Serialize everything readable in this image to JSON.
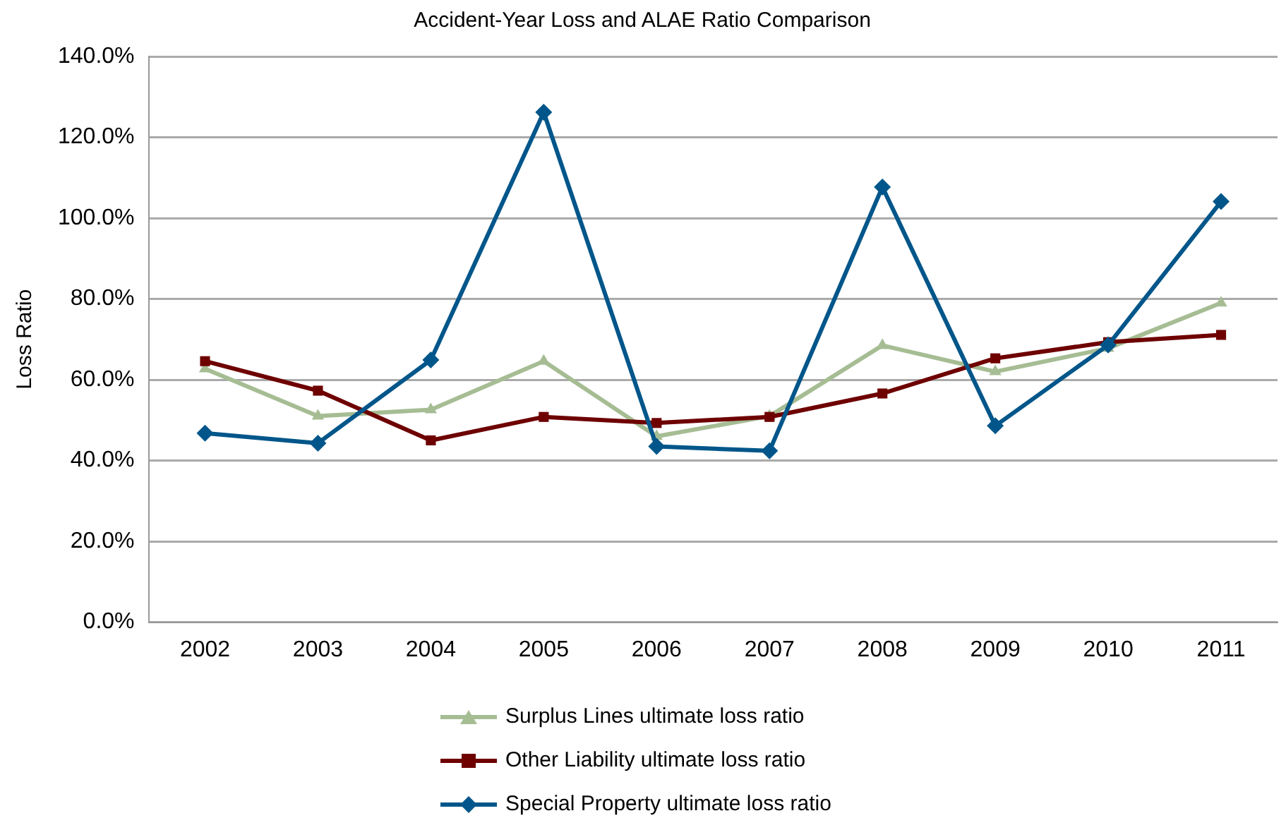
{
  "chart_data": {
    "type": "line",
    "title": "Accident-Year Loss and ALAE Ratio Comparison",
    "ylabel": "Loss Ratio",
    "categories": [
      "2002",
      "2003",
      "2004",
      "2005",
      "2006",
      "2007",
      "2008",
      "2009",
      "2010",
      "2011"
    ],
    "series": [
      {
        "name": "Surplus Lines ultimate loss ratio",
        "color": "#a6bd94",
        "marker": "triangle",
        "values": [
          62.7,
          51,
          52.6,
          64.6,
          46,
          51,
          68.5,
          62,
          67.8,
          79
        ]
      },
      {
        "name": "Other Liability ultimate loss ratio",
        "color": "#6e0000",
        "marker": "square",
        "values": [
          64.6,
          57.3,
          45,
          50.8,
          49.3,
          50.8,
          56.6,
          65.3,
          69.3,
          71.1
        ]
      },
      {
        "name": "Special Property ultimate loss ratio",
        "color": "#00568a",
        "marker": "diamond",
        "values": [
          46.8,
          44.3,
          64.9,
          126.2,
          43.5,
          42.4,
          107.7,
          48.6,
          68.6,
          104.1
        ]
      }
    ],
    "ylim": [
      0,
      140
    ],
    "yticks": [
      {
        "value": 0,
        "label": "0.0%"
      },
      {
        "value": 20,
        "label": "20.0%"
      },
      {
        "value": 40,
        "label": "40.0%"
      },
      {
        "value": 60,
        "label": "60.0%"
      },
      {
        "value": 80,
        "label": "80.0%"
      },
      {
        "value": 100,
        "label": "100.0%"
      },
      {
        "value": 120,
        "label": "120.0%"
      },
      {
        "value": 140,
        "label": "140.0%"
      }
    ],
    "grid": "y",
    "legend": "bottom",
    "line_style": "solid"
  }
}
